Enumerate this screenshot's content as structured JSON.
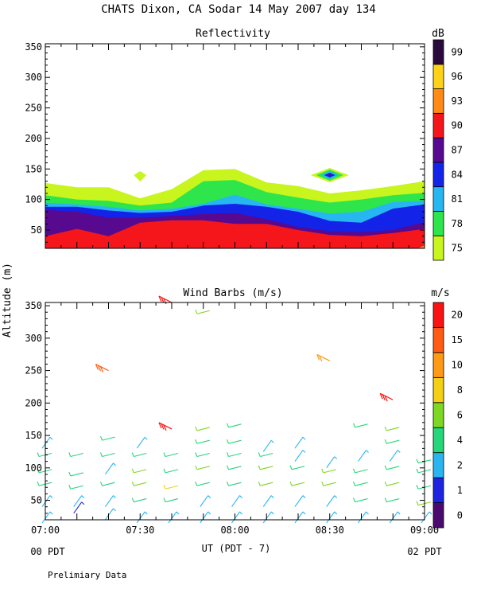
{
  "title": "CHATS Dixon, CA  Sodar  14 May 2007  day 134",
  "ylabel": "Altitude (m)",
  "xlabel": "UT  (PDT - 7)",
  "x_left_sub": "00 PDT",
  "x_right_sub": "02 PDT",
  "footnote": "Prelimiary Data",
  "colors": {
    "reflectivity_scale": [
      "#c8f51e",
      "#2ee64b",
      "#27b7f0",
      "#1423e8",
      "#57098f",
      "#f5161b",
      "#ff8a16",
      "#ffd21a",
      "#2a0a3d"
    ],
    "wind_scale": [
      "#4a0a6e",
      "#1e25e0",
      "#2ab5ef",
      "#26d67a",
      "#7dd823",
      "#f3cf16",
      "#ff9a17",
      "#ff5b14",
      "#f81414"
    ]
  },
  "chart_data": [
    {
      "type": "heatmap",
      "title": "Reflectivity",
      "units": "dB",
      "xlim": [
        "07:00",
        "09:00"
      ],
      "ylim": [
        20,
        355
      ],
      "x_ticks": [
        "07:00",
        "07:30",
        "08:00",
        "08:30",
        "09:00"
      ],
      "y_ticks": [
        50,
        100,
        150,
        200,
        250,
        300,
        350
      ],
      "colorbar_ticks": [
        75,
        78,
        81,
        84,
        87,
        90,
        93,
        96,
        99
      ],
      "times": [
        "07:00",
        "07:10",
        "07:20",
        "07:30",
        "07:40",
        "07:50",
        "08:00",
        "08:10",
        "08:20",
        "08:30",
        "08:40",
        "08:50",
        "09:00"
      ],
      "boundaries": [
        {
          "threshold_db": 75,
          "heights": [
            127,
            120,
            120,
            102,
            117,
            148,
            150,
            128,
            122,
            110,
            115,
            122,
            130
          ]
        },
        {
          "threshold_db": 78,
          "heights": [
            107,
            100,
            98,
            90,
            95,
            130,
            132,
            112,
            103,
            95,
            100,
            107,
            111
          ]
        },
        {
          "threshold_db": 81,
          "heights": [
            95,
            92,
            88,
            82,
            85,
            93,
            108,
            92,
            85,
            77,
            80,
            96,
            98
          ]
        },
        {
          "threshold_db": 84,
          "heights": [
            88,
            88,
            82,
            78,
            80,
            90,
            93,
            88,
            80,
            65,
            62,
            85,
            92
          ]
        },
        {
          "threshold_db": 87,
          "heights": [
            83,
            80,
            70,
            70,
            73,
            76,
            78,
            68,
            55,
            48,
            47,
            50,
            63
          ]
        },
        {
          "threshold_db": 90,
          "heights": [
            40,
            52,
            40,
            62,
            66,
            66,
            60,
            60,
            50,
            42,
            40,
            45,
            52
          ]
        }
      ],
      "features": [
        {
          "label": "75-78 blob",
          "time": "07:30",
          "height": 140
        },
        {
          "label": "84-87 core",
          "time": "08:30",
          "height": 140
        }
      ]
    },
    {
      "type": "scatter",
      "title": "Wind Barbs (m/s)",
      "units": "m/s",
      "xlim": [
        "07:00",
        "09:00"
      ],
      "ylim": [
        20,
        355
      ],
      "x_ticks": [
        "07:00",
        "07:30",
        "08:00",
        "08:30",
        "09:00"
      ],
      "y_ticks": [
        50,
        100,
        150,
        200,
        250,
        300,
        350
      ],
      "colorbar_ticks": [
        0,
        1,
        2,
        4,
        6,
        8,
        10,
        15,
        20
      ],
      "times": [
        "07:00",
        "07:10",
        "07:20",
        "07:30",
        "07:40",
        "07:50",
        "08:00",
        "08:10",
        "08:20",
        "08:30",
        "08:40",
        "08:50",
        "09:00"
      ],
      "columns": [
        [
          [
            25,
            2.5
          ],
          [
            50,
            2.5
          ],
          [
            75,
            4
          ],
          [
            95,
            4
          ],
          [
            120,
            4
          ],
          [
            140,
            2.5
          ]
        ],
        [
          [
            40,
            1.5
          ],
          [
            50,
            2.5
          ],
          [
            70,
            4
          ],
          [
            90,
            4
          ],
          [
            120,
            4
          ]
        ],
        [
          [
            30,
            2.5
          ],
          [
            50,
            2.5
          ],
          [
            75,
            4
          ],
          [
            100,
            2.5
          ],
          [
            120,
            4
          ],
          [
            145,
            4
          ],
          [
            250,
            19
          ]
        ],
        [
          [
            25,
            2.5
          ],
          [
            50,
            4
          ],
          [
            75,
            6
          ],
          [
            95,
            6
          ],
          [
            120,
            4
          ],
          [
            140,
            2.5
          ]
        ],
        [
          [
            25,
            2.5
          ],
          [
            50,
            4
          ],
          [
            70,
            8
          ],
          [
            95,
            4
          ],
          [
            120,
            4
          ],
          [
            160,
            20
          ],
          [
            355,
            20
          ]
        ],
        [
          [
            25,
            2.5
          ],
          [
            50,
            2.5
          ],
          [
            75,
            4
          ],
          [
            100,
            6
          ],
          [
            120,
            4
          ],
          [
            140,
            4
          ],
          [
            160,
            6
          ],
          [
            340,
            6
          ]
        ],
        [
          [
            25,
            2.5
          ],
          [
            50,
            2.5
          ],
          [
            75,
            4
          ],
          [
            100,
            4
          ],
          [
            120,
            4
          ],
          [
            140,
            4
          ],
          [
            165,
            4
          ]
        ],
        [
          [
            25,
            2.5
          ],
          [
            50,
            2.5
          ],
          [
            75,
            6
          ],
          [
            100,
            6
          ],
          [
            120,
            4
          ],
          [
            135,
            2.5
          ]
        ],
        [
          [
            25,
            2.5
          ],
          [
            50,
            2.5
          ],
          [
            75,
            6
          ],
          [
            100,
            4
          ],
          [
            120,
            2.5
          ],
          [
            140,
            2.5
          ]
        ],
        [
          [
            25,
            2.5
          ],
          [
            50,
            2.5
          ],
          [
            75,
            6
          ],
          [
            95,
            6
          ],
          [
            110,
            2.5
          ],
          [
            265,
            12
          ]
        ],
        [
          [
            25,
            2.5
          ],
          [
            50,
            4
          ],
          [
            75,
            4
          ],
          [
            95,
            4
          ],
          [
            120,
            2.5
          ],
          [
            165,
            4
          ]
        ],
        [
          [
            25,
            2.5
          ],
          [
            50,
            4
          ],
          [
            75,
            6
          ],
          [
            100,
            4
          ],
          [
            120,
            2.5
          ],
          [
            140,
            4
          ],
          [
            160,
            6
          ],
          [
            205,
            20
          ]
        ],
        [
          [
            25,
            2.5
          ],
          [
            45,
            6
          ],
          [
            70,
            4
          ],
          [
            95,
            4
          ],
          [
            110,
            4
          ]
        ]
      ]
    }
  ]
}
